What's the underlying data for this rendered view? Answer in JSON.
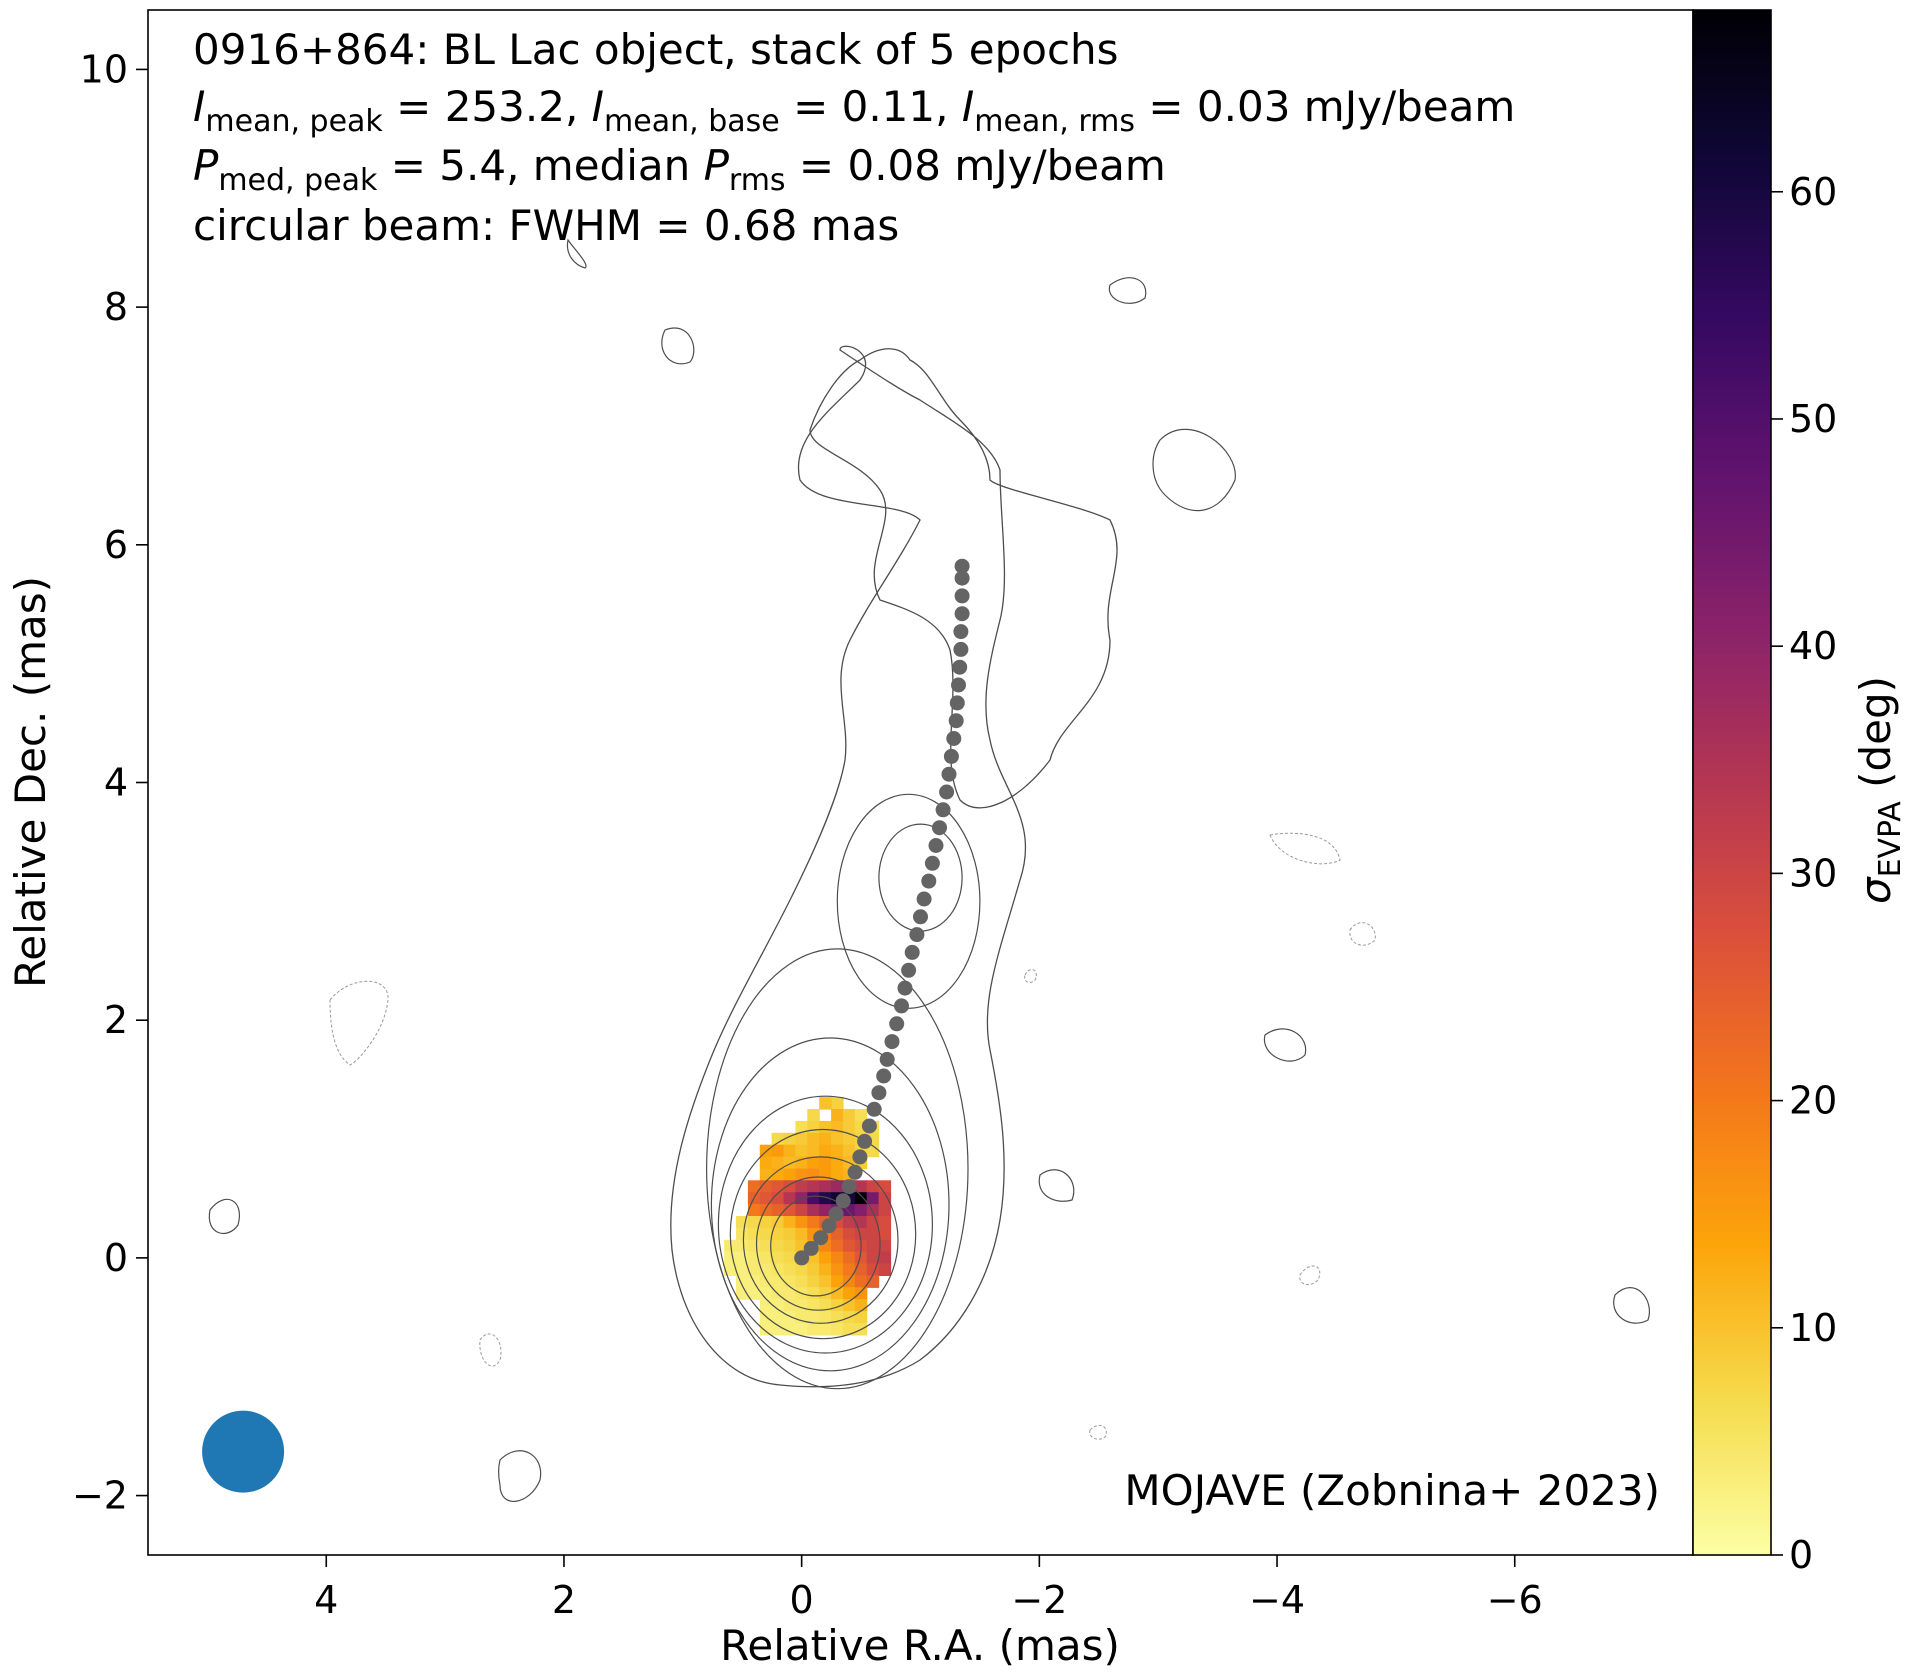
{
  "chart_data": {
    "type": "heatmap",
    "title_lines": {
      "line1": "0916+864: BL Lac object, stack of 5 epochs",
      "line2": {
        "a_sym": "I",
        "a_sub": "mean, peak",
        "a_val": " = 253.2, ",
        "b_sym": "I",
        "b_sub": "mean, base",
        "b_val": " = 0.11, ",
        "c_sym": "I",
        "c_sub": "mean, rms",
        "c_val": " = 0.03 mJy/beam"
      },
      "line3": {
        "a_sym": "P",
        "a_sub": "med, peak",
        "a_val": " = 5.4, median ",
        "b_sym": "P",
        "b_sub": "rms",
        "b_val": " = 0.08 mJy/beam"
      },
      "line4": "circular beam: FWHM = 0.68 mas"
    },
    "credit": "MOJAVE (Zobnina+ 2023)",
    "xlabel": "Relative R.A. (mas)",
    "ylabel": "Relative Dec. (mas)",
    "xlim": [
      5.5,
      -7.5
    ],
    "ylim": [
      -2.5,
      10.5
    ],
    "xticks": [
      {
        "v": 4,
        "t": "4"
      },
      {
        "v": 2,
        "t": "2"
      },
      {
        "v": 0,
        "t": "0"
      },
      {
        "v": -2,
        "t": "−2"
      },
      {
        "v": -4,
        "t": "−4"
      },
      {
        "v": -6,
        "t": "−6"
      }
    ],
    "yticks": [
      {
        "v": -2,
        "t": "−2"
      },
      {
        "v": 0,
        "t": "0"
      },
      {
        "v": 2,
        "t": "2"
      },
      {
        "v": 4,
        "t": "4"
      },
      {
        "v": 6,
        "t": "6"
      },
      {
        "v": 8,
        "t": "8"
      },
      {
        "v": 10,
        "t": "10"
      }
    ],
    "colorbar": {
      "label_sym": "σ",
      "label_sub": "EVPA",
      "label_unit": " (deg)",
      "min": 0,
      "max": 68,
      "ticks": [
        {
          "v": 0,
          "t": "0"
        },
        {
          "v": 10,
          "t": "10"
        },
        {
          "v": 20,
          "t": "20"
        },
        {
          "v": 30,
          "t": "30"
        },
        {
          "v": 40,
          "t": "40"
        },
        {
          "v": 50,
          "t": "50"
        },
        {
          "v": 60,
          "t": "60"
        }
      ],
      "colormap": "inferno_r"
    },
    "beam": {
      "ra": 4.7,
      "dec": -1.63,
      "fwhm_mas": 0.68,
      "color": "#1f77b4"
    },
    "ridgeline": {
      "color": "#646464",
      "points": [
        [
          0.0,
          0.0
        ],
        [
          -0.08,
          0.08
        ],
        [
          -0.16,
          0.17
        ],
        [
          -0.23,
          0.27
        ],
        [
          -0.29,
          0.37
        ],
        [
          -0.35,
          0.48
        ],
        [
          -0.4,
          0.6
        ],
        [
          -0.45,
          0.72
        ],
        [
          -0.49,
          0.85
        ],
        [
          -0.53,
          0.98
        ],
        [
          -0.57,
          1.11
        ],
        [
          -0.61,
          1.25
        ],
        [
          -0.65,
          1.39
        ],
        [
          -0.69,
          1.53
        ],
        [
          -0.72,
          1.67
        ],
        [
          -0.76,
          1.82
        ],
        [
          -0.8,
          1.97
        ],
        [
          -0.84,
          2.12
        ],
        [
          -0.87,
          2.27
        ],
        [
          -0.9,
          2.42
        ],
        [
          -0.93,
          2.57
        ],
        [
          -0.97,
          2.72
        ],
        [
          -1.0,
          2.87
        ],
        [
          -1.03,
          3.02
        ],
        [
          -1.07,
          3.17
        ],
        [
          -1.1,
          3.32
        ],
        [
          -1.13,
          3.47
        ],
        [
          -1.16,
          3.62
        ],
        [
          -1.19,
          3.77
        ],
        [
          -1.22,
          3.92
        ],
        [
          -1.24,
          4.07
        ],
        [
          -1.26,
          4.22
        ],
        [
          -1.28,
          4.37
        ],
        [
          -1.3,
          4.52
        ],
        [
          -1.31,
          4.67
        ],
        [
          -1.32,
          4.82
        ],
        [
          -1.33,
          4.97
        ],
        [
          -1.34,
          5.12
        ],
        [
          -1.34,
          5.27
        ],
        [
          -1.35,
          5.42
        ],
        [
          -1.35,
          5.57
        ],
        [
          -1.35,
          5.72
        ],
        [
          -1.35,
          5.82
        ]
      ]
    },
    "contours": {
      "color": "#4d4d4d",
      "levels": [
        {
          "cx": -0.12,
          "cy": 0.1,
          "rx": 0.38,
          "ry": 0.42
        },
        {
          "cx": -0.14,
          "cy": 0.12,
          "rx": 0.52,
          "ry": 0.56
        },
        {
          "cx": -0.16,
          "cy": 0.15,
          "rx": 0.65,
          "ry": 0.7
        },
        {
          "cx": -0.18,
          "cy": 0.2,
          "rx": 0.78,
          "ry": 0.88
        },
        {
          "cx": -0.2,
          "cy": 0.28,
          "rx": 0.9,
          "ry": 1.08
        },
        {
          "cx": -0.24,
          "cy": 0.45,
          "rx": 1.0,
          "ry": 1.4
        },
        {
          "cx": -0.3,
          "cy": 0.75,
          "rx": 1.1,
          "ry": 1.85
        }
      ],
      "knot": [
        {
          "cx": -1.0,
          "cy": 3.2,
          "rx": 0.35,
          "ry": 0.45
        },
        {
          "cx": -0.9,
          "cy": 3.0,
          "rx": 0.6,
          "ry": 0.9
        }
      ]
    },
    "evpa_uncertainty_pixels": [
      [
        -0.3,
        1.3,
        8
      ],
      [
        -0.2,
        1.3,
        10
      ],
      [
        -0.1,
        1.2,
        7
      ],
      [
        -0.3,
        1.2,
        12
      ],
      [
        -0.4,
        1.2,
        9
      ],
      [
        -0.5,
        1.2,
        6
      ],
      [
        0.0,
        1.1,
        6
      ],
      [
        -0.1,
        1.1,
        8
      ],
      [
        -0.2,
        1.1,
        10
      ],
      [
        -0.3,
        1.1,
        11
      ],
      [
        -0.4,
        1.1,
        9
      ],
      [
        -0.5,
        1.1,
        7
      ],
      [
        -0.6,
        1.1,
        6
      ],
      [
        0.2,
        1.0,
        7
      ],
      [
        0.1,
        1.0,
        8
      ],
      [
        0.0,
        1.0,
        9
      ],
      [
        -0.1,
        1.0,
        11
      ],
      [
        -0.2,
        1.0,
        12
      ],
      [
        -0.3,
        1.0,
        10
      ],
      [
        -0.4,
        1.0,
        9
      ],
      [
        -0.5,
        1.0,
        8
      ],
      [
        -0.6,
        1.0,
        7
      ],
      [
        0.3,
        0.9,
        14
      ],
      [
        0.2,
        0.9,
        15
      ],
      [
        0.1,
        0.9,
        12
      ],
      [
        0.0,
        0.9,
        10
      ],
      [
        -0.1,
        0.9,
        11
      ],
      [
        -0.2,
        0.9,
        13
      ],
      [
        -0.3,
        0.9,
        12
      ],
      [
        -0.4,
        0.9,
        10
      ],
      [
        -0.5,
        0.9,
        8
      ],
      [
        -0.6,
        0.9,
        7
      ],
      [
        0.3,
        0.8,
        13
      ],
      [
        0.2,
        0.8,
        12
      ],
      [
        0.1,
        0.8,
        11
      ],
      [
        0.0,
        0.8,
        12
      ],
      [
        -0.1,
        0.8,
        14
      ],
      [
        -0.2,
        0.8,
        15
      ],
      [
        -0.3,
        0.8,
        13
      ],
      [
        -0.4,
        0.8,
        11
      ],
      [
        -0.5,
        0.8,
        9
      ],
      [
        0.3,
        0.7,
        12
      ],
      [
        0.2,
        0.7,
        13
      ],
      [
        0.1,
        0.7,
        14
      ],
      [
        0.0,
        0.7,
        16
      ],
      [
        -0.1,
        0.7,
        17
      ],
      [
        -0.2,
        0.7,
        15
      ],
      [
        -0.3,
        0.7,
        13
      ],
      [
        -0.4,
        0.7,
        12
      ],
      [
        0.4,
        0.6,
        22
      ],
      [
        0.3,
        0.6,
        24
      ],
      [
        0.2,
        0.6,
        26
      ],
      [
        0.1,
        0.6,
        28
      ],
      [
        0.0,
        0.6,
        32
      ],
      [
        -0.1,
        0.6,
        34
      ],
      [
        -0.2,
        0.6,
        36
      ],
      [
        -0.3,
        0.6,
        38
      ],
      [
        -0.4,
        0.6,
        36
      ],
      [
        -0.5,
        0.6,
        34
      ],
      [
        -0.6,
        0.6,
        30
      ],
      [
        -0.7,
        0.6,
        28
      ],
      [
        0.4,
        0.5,
        24
      ],
      [
        0.3,
        0.5,
        26
      ],
      [
        0.2,
        0.5,
        28
      ],
      [
        0.1,
        0.5,
        34
      ],
      [
        0.0,
        0.5,
        40
      ],
      [
        -0.1,
        0.5,
        52
      ],
      [
        -0.2,
        0.5,
        58
      ],
      [
        -0.3,
        0.5,
        62
      ],
      [
        -0.4,
        0.5,
        60
      ],
      [
        -0.5,
        0.5,
        68
      ],
      [
        -0.6,
        0.5,
        44
      ],
      [
        -0.7,
        0.5,
        30
      ],
      [
        0.4,
        0.4,
        20
      ],
      [
        0.3,
        0.4,
        22
      ],
      [
        0.2,
        0.4,
        24
      ],
      [
        0.1,
        0.4,
        26
      ],
      [
        0.0,
        0.4,
        30
      ],
      [
        -0.1,
        0.4,
        36
      ],
      [
        -0.2,
        0.4,
        40
      ],
      [
        -0.3,
        0.4,
        44
      ],
      [
        -0.4,
        0.4,
        46
      ],
      [
        -0.5,
        0.4,
        42
      ],
      [
        -0.6,
        0.4,
        36
      ],
      [
        -0.7,
        0.4,
        30
      ],
      [
        0.5,
        0.3,
        6
      ],
      [
        0.4,
        0.3,
        7
      ],
      [
        0.3,
        0.3,
        8
      ],
      [
        0.2,
        0.3,
        9
      ],
      [
        0.1,
        0.3,
        12
      ],
      [
        0.0,
        0.3,
        16
      ],
      [
        -0.1,
        0.3,
        20
      ],
      [
        -0.2,
        0.3,
        24
      ],
      [
        -0.3,
        0.3,
        28
      ],
      [
        -0.4,
        0.3,
        32
      ],
      [
        -0.5,
        0.3,
        34
      ],
      [
        -0.6,
        0.3,
        30
      ],
      [
        -0.7,
        0.3,
        28
      ],
      [
        0.5,
        0.2,
        5
      ],
      [
        0.4,
        0.2,
        6
      ],
      [
        0.3,
        0.2,
        7
      ],
      [
        0.2,
        0.2,
        8
      ],
      [
        0.1,
        0.2,
        9
      ],
      [
        0.0,
        0.2,
        11
      ],
      [
        -0.1,
        0.2,
        16
      ],
      [
        -0.2,
        0.2,
        20
      ],
      [
        -0.3,
        0.2,
        24
      ],
      [
        -0.4,
        0.2,
        28
      ],
      [
        -0.5,
        0.2,
        30
      ],
      [
        -0.6,
        0.2,
        30
      ],
      [
        -0.7,
        0.2,
        28
      ],
      [
        0.6,
        0.1,
        4
      ],
      [
        0.5,
        0.1,
        4
      ],
      [
        0.4,
        0.1,
        5
      ],
      [
        0.3,
        0.1,
        6
      ],
      [
        0.2,
        0.1,
        7
      ],
      [
        0.1,
        0.1,
        8
      ],
      [
        0.0,
        0.1,
        10
      ],
      [
        -0.1,
        0.1,
        14
      ],
      [
        -0.2,
        0.1,
        18
      ],
      [
        -0.3,
        0.1,
        22
      ],
      [
        -0.4,
        0.1,
        26
      ],
      [
        -0.5,
        0.1,
        28
      ],
      [
        -0.6,
        0.1,
        30
      ],
      [
        -0.7,
        0.1,
        30
      ],
      [
        0.6,
        0.0,
        3
      ],
      [
        0.5,
        0.0,
        3
      ],
      [
        0.4,
        0.0,
        4
      ],
      [
        0.3,
        0.0,
        5
      ],
      [
        0.2,
        0.0,
        6
      ],
      [
        0.1,
        0.0,
        7
      ],
      [
        0.0,
        0.0,
        8
      ],
      [
        -0.1,
        0.0,
        10
      ],
      [
        -0.2,
        0.0,
        14
      ],
      [
        -0.3,
        0.0,
        18
      ],
      [
        -0.4,
        0.0,
        22
      ],
      [
        -0.5,
        0.0,
        26
      ],
      [
        -0.6,
        0.0,
        30
      ],
      [
        -0.7,
        0.0,
        32
      ],
      [
        0.6,
        -0.1,
        3
      ],
      [
        0.5,
        -0.1,
        3
      ],
      [
        0.4,
        -0.1,
        4
      ],
      [
        0.3,
        -0.1,
        4
      ],
      [
        0.2,
        -0.1,
        5
      ],
      [
        0.1,
        -0.1,
        6
      ],
      [
        0.0,
        -0.1,
        7
      ],
      [
        -0.1,
        -0.1,
        9
      ],
      [
        -0.2,
        -0.1,
        12
      ],
      [
        -0.3,
        -0.1,
        16
      ],
      [
        -0.4,
        -0.1,
        20
      ],
      [
        -0.5,
        -0.1,
        24
      ],
      [
        -0.6,
        -0.1,
        28
      ],
      [
        -0.7,
        -0.1,
        30
      ],
      [
        0.5,
        -0.2,
        3
      ],
      [
        0.4,
        -0.2,
        3
      ],
      [
        0.3,
        -0.2,
        4
      ],
      [
        0.2,
        -0.2,
        4
      ],
      [
        0.1,
        -0.2,
        5
      ],
      [
        0.0,
        -0.2,
        6
      ],
      [
        -0.1,
        -0.2,
        8
      ],
      [
        -0.2,
        -0.2,
        10
      ],
      [
        -0.3,
        -0.2,
        14
      ],
      [
        -0.4,
        -0.2,
        18
      ],
      [
        -0.5,
        -0.2,
        22
      ],
      [
        -0.6,
        -0.2,
        24
      ],
      [
        0.5,
        -0.3,
        3
      ],
      [
        0.4,
        -0.3,
        3
      ],
      [
        0.3,
        -0.3,
        3
      ],
      [
        0.2,
        -0.3,
        4
      ],
      [
        0.1,
        -0.3,
        4
      ],
      [
        0.0,
        -0.3,
        5
      ],
      [
        -0.1,
        -0.3,
        6
      ],
      [
        -0.2,
        -0.3,
        8
      ],
      [
        -0.3,
        -0.3,
        11
      ],
      [
        -0.4,
        -0.3,
        14
      ],
      [
        -0.5,
        -0.3,
        16
      ],
      [
        0.3,
        -0.4,
        3
      ],
      [
        0.2,
        -0.4,
        3
      ],
      [
        0.1,
        -0.4,
        4
      ],
      [
        0.0,
        -0.4,
        4
      ],
      [
        -0.1,
        -0.4,
        5
      ],
      [
        -0.2,
        -0.4,
        6
      ],
      [
        -0.3,
        -0.4,
        8
      ],
      [
        -0.4,
        -0.4,
        10
      ],
      [
        -0.5,
        -0.4,
        12
      ],
      [
        0.3,
        -0.5,
        3
      ],
      [
        0.2,
        -0.5,
        3
      ],
      [
        0.1,
        -0.5,
        3
      ],
      [
        0.0,
        -0.5,
        4
      ],
      [
        -0.1,
        -0.5,
        4
      ],
      [
        -0.2,
        -0.5,
        5
      ],
      [
        -0.3,
        -0.5,
        6
      ],
      [
        -0.4,
        -0.5,
        7
      ],
      [
        -0.5,
        -0.5,
        8
      ],
      [
        0.3,
        -0.6,
        3
      ],
      [
        0.2,
        -0.6,
        3
      ],
      [
        0.1,
        -0.6,
        3
      ],
      [
        0.0,
        -0.6,
        3
      ],
      [
        -0.1,
        -0.6,
        4
      ],
      [
        -0.2,
        -0.6,
        4
      ],
      [
        -0.3,
        -0.6,
        5
      ],
      [
        -0.4,
        -0.6,
        6
      ],
      [
        -0.5,
        -0.6,
        6
      ]
    ]
  }
}
